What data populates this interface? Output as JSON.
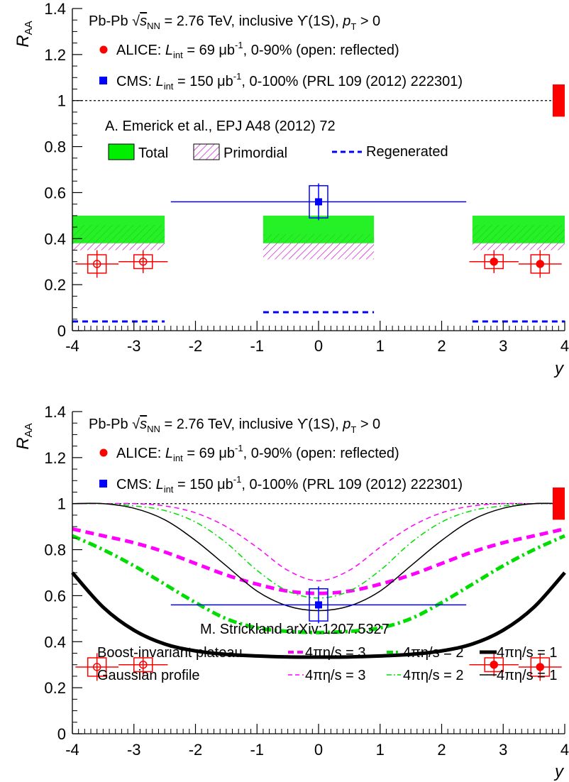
{
  "chart_data": [
    {
      "type": "scatter",
      "xlabel": "y",
      "ylabel_main": "R",
      "ylabel_sub": "AA",
      "xlim": [
        -4,
        4
      ],
      "ylim": [
        0,
        1.4
      ],
      "xticks": [
        "-4",
        "-3",
        "-2",
        "-1",
        "0",
        "1",
        "2",
        "3",
        "4"
      ],
      "yticks": [
        "0",
        "0.2",
        "0.4",
        "0.6",
        "0.8",
        "1",
        "1.2",
        "1.4"
      ],
      "reference_line": 1,
      "header": {
        "system_pre": "Pb-Pb ",
        "energy_sub": "NN",
        "energy_post": " = 2.76 TeV, inclusive ϒ(1S), ",
        "pt_var": "p",
        "pt_sub": "T",
        "pt_post": " > 0"
      },
      "legend": [
        {
          "name": "ALICE",
          "pre": "ALICE: ",
          "lsym": "L",
          "lsub": "int",
          "mid": " = 69 μb",
          "sup": "-1",
          "post": ", 0-90% (open: reflected)",
          "color": "#ff0000"
        },
        {
          "name": "CMS",
          "pre": "CMS: ",
          "lsym": "L",
          "lsub": "int",
          "mid": " = 150 μb",
          "sup": "-1",
          "post": ", 0-100% (PRL 109 (2012) 222301)",
          "color": "#0000ff"
        }
      ],
      "model_label": "A. Emerick et al., EPJ A48 (2012) 72",
      "model_legend": {
        "total": "Total",
        "primordial": "Primordial",
        "regenerated": "Regenerated"
      },
      "alice_points": [
        {
          "x": 2.85,
          "xerr": 0.4,
          "y": 0.3,
          "yerr": 0.05,
          "sys_y": 0.03,
          "open": false
        },
        {
          "x": 3.6,
          "xerr": 0.35,
          "y": 0.29,
          "yerr": 0.06,
          "sys_y": 0.04,
          "open": false
        },
        {
          "x": -2.85,
          "xerr": 0.4,
          "y": 0.3,
          "yerr": 0.05,
          "sys_y": 0.03,
          "open": true
        },
        {
          "x": -3.6,
          "xerr": 0.35,
          "y": 0.29,
          "yerr": 0.06,
          "sys_y": 0.04,
          "open": true
        }
      ],
      "cms_point": {
        "x": 0,
        "xerr": 2.4,
        "y": 0.56,
        "yerr": 0.08,
        "sys_y": 0.07
      },
      "global_uncertainty_box": {
        "low": 0.93,
        "high": 1.07,
        "color": "#ff0000"
      },
      "bands": [
        {
          "x": [
            -4,
            -2.5
          ],
          "total": [
            0.38,
            0.5
          ],
          "primordial": [
            0.35,
            0.46
          ],
          "regenerated": 0.04
        },
        {
          "x": [
            -0.9,
            0.9
          ],
          "total": [
            0.38,
            0.5
          ],
          "primordial": [
            0.31,
            0.42
          ],
          "regenerated": 0.08
        },
        {
          "x": [
            2.5,
            4
          ],
          "total": [
            0.38,
            0.5
          ],
          "primordial": [
            0.35,
            0.46
          ],
          "regenerated": 0.04
        }
      ],
      "colors": {
        "total": "#00ee00",
        "primordial": "#cc00cc",
        "regenerated": "#0000ff"
      }
    },
    {
      "type": "line",
      "xlabel": "y",
      "ylabel_main": "R",
      "ylabel_sub": "AA",
      "xlim": [
        -4,
        4
      ],
      "ylim": [
        0,
        1.4
      ],
      "xticks": [
        "-4",
        "-3",
        "-2",
        "-1",
        "0",
        "1",
        "2",
        "3",
        "4"
      ],
      "yticks": [
        "0",
        "0.2",
        "0.4",
        "0.6",
        "0.8",
        "1",
        "1.2",
        "1.4"
      ],
      "reference_line": 1,
      "header": {
        "system_pre": "Pb-Pb ",
        "energy_sub": "NN",
        "energy_post": " = 2.76 TeV, inclusive ϒ(1S), ",
        "pt_var": "p",
        "pt_sub": "T",
        "pt_post": " > 0"
      },
      "legend": [
        {
          "name": "ALICE",
          "pre": "ALICE: ",
          "lsym": "L",
          "lsub": "int",
          "mid": " = 69 μb",
          "sup": "-1",
          "post": ", 0-90% (open: reflected)",
          "color": "#ff0000"
        },
        {
          "name": "CMS",
          "pre": "CMS: ",
          "lsym": "L",
          "lsub": "int",
          "mid": " = 150 μb",
          "sup": "-1",
          "post": ", 0-100% (PRL 109 (2012) 222301)",
          "color": "#0000ff"
        }
      ],
      "model_label": "M. Strickland arXiv:1207.5327",
      "legend_rows": [
        {
          "label": "Boost-invariant plateau",
          "entries": [
            "4πη/s = 3",
            "4πη/s = 2",
            "4πη/s = 1"
          ]
        },
        {
          "label": "Gaussian profile",
          "entries": [
            "4πη/s = 3",
            "4πη/s = 2",
            "4πη/s = 1"
          ]
        }
      ],
      "alice_points": [
        {
          "x": 2.85,
          "xerr": 0.4,
          "y": 0.3,
          "yerr": 0.05,
          "sys_y": 0.03,
          "open": false
        },
        {
          "x": 3.6,
          "xerr": 0.35,
          "y": 0.29,
          "yerr": 0.06,
          "sys_y": 0.04,
          "open": false
        },
        {
          "x": -2.85,
          "xerr": 0.4,
          "y": 0.3,
          "yerr": 0.05,
          "sys_y": 0.03,
          "open": true
        },
        {
          "x": -3.6,
          "xerr": 0.35,
          "y": 0.29,
          "yerr": 0.06,
          "sys_y": 0.04,
          "open": true
        }
      ],
      "cms_point": {
        "x": 0,
        "xerr": 2.4,
        "y": 0.56,
        "yerr": 0.08,
        "sys_y": 0.07
      },
      "global_uncertainty_box": {
        "low": 0.93,
        "high": 1.07,
        "color": "#ff0000"
      },
      "series": [
        {
          "profile": "boost-invariant",
          "eta": 3,
          "color": "#ff00ff",
          "style": "thick-dash",
          "x": [
            -4,
            -3.5,
            -3,
            -2.5,
            -2,
            -1.5,
            -1,
            -0.5,
            0,
            0.5,
            1,
            1.5,
            2,
            2.5,
            3,
            3.5,
            4
          ],
          "y": [
            0.89,
            0.86,
            0.83,
            0.79,
            0.74,
            0.69,
            0.65,
            0.62,
            0.61,
            0.62,
            0.65,
            0.69,
            0.74,
            0.79,
            0.83,
            0.86,
            0.89
          ]
        },
        {
          "profile": "boost-invariant",
          "eta": 2,
          "color": "#00dd00",
          "style": "thick-dashdot",
          "x": [
            -4,
            -3.5,
            -3,
            -2.5,
            -2,
            -1.5,
            -1,
            -0.5,
            0,
            0.5,
            1,
            1.5,
            2,
            2.5,
            3,
            3.5,
            4
          ],
          "y": [
            0.86,
            0.8,
            0.73,
            0.65,
            0.57,
            0.5,
            0.46,
            0.445,
            0.44,
            0.445,
            0.46,
            0.5,
            0.57,
            0.65,
            0.73,
            0.8,
            0.86
          ]
        },
        {
          "profile": "boost-invariant",
          "eta": 1,
          "color": "#000000",
          "style": "thick-solid",
          "x": [
            -4,
            -3.5,
            -3,
            -2.5,
            -2,
            -1.5,
            -1,
            -0.5,
            0,
            0.5,
            1,
            1.5,
            2,
            2.5,
            3,
            3.5,
            4
          ],
          "y": [
            0.7,
            0.55,
            0.45,
            0.39,
            0.36,
            0.345,
            0.338,
            0.334,
            0.333,
            0.334,
            0.338,
            0.345,
            0.36,
            0.39,
            0.45,
            0.55,
            0.7
          ]
        },
        {
          "profile": "gaussian",
          "eta": 3,
          "color": "#ff00ff",
          "style": "thin-dash",
          "x": [
            -4,
            -3.5,
            -3,
            -2.5,
            -2,
            -1.5,
            -1,
            -0.5,
            0,
            0.5,
            1,
            1.5,
            2,
            2.5,
            3,
            3.5,
            4
          ],
          "y": [
            1.0,
            1.0,
            1.0,
            0.99,
            0.96,
            0.9,
            0.81,
            0.71,
            0.665,
            0.71,
            0.81,
            0.9,
            0.96,
            0.99,
            1.0,
            1.0,
            1.0
          ]
        },
        {
          "profile": "gaussian",
          "eta": 2,
          "color": "#00dd00",
          "style": "thin-dashdot",
          "x": [
            -4,
            -3.5,
            -3,
            -2.5,
            -2,
            -1.5,
            -1,
            -0.5,
            0,
            0.5,
            1,
            1.5,
            2,
            2.5,
            3,
            3.5,
            4
          ],
          "y": [
            1.0,
            1.0,
            0.99,
            0.97,
            0.92,
            0.83,
            0.71,
            0.62,
            0.59,
            0.62,
            0.71,
            0.83,
            0.92,
            0.97,
            0.99,
            1.0,
            1.0
          ]
        },
        {
          "profile": "gaussian",
          "eta": 1,
          "color": "#000000",
          "style": "thin-solid",
          "x": [
            -4,
            -3.5,
            -3,
            -2.5,
            -2,
            -1.5,
            -1,
            -0.5,
            0,
            0.5,
            1,
            1.5,
            2,
            2.5,
            3,
            3.5,
            4
          ],
          "y": [
            1.0,
            1.0,
            0.98,
            0.93,
            0.84,
            0.73,
            0.62,
            0.555,
            0.535,
            0.555,
            0.62,
            0.73,
            0.84,
            0.93,
            0.98,
            1.0,
            1.0
          ]
        }
      ]
    }
  ]
}
